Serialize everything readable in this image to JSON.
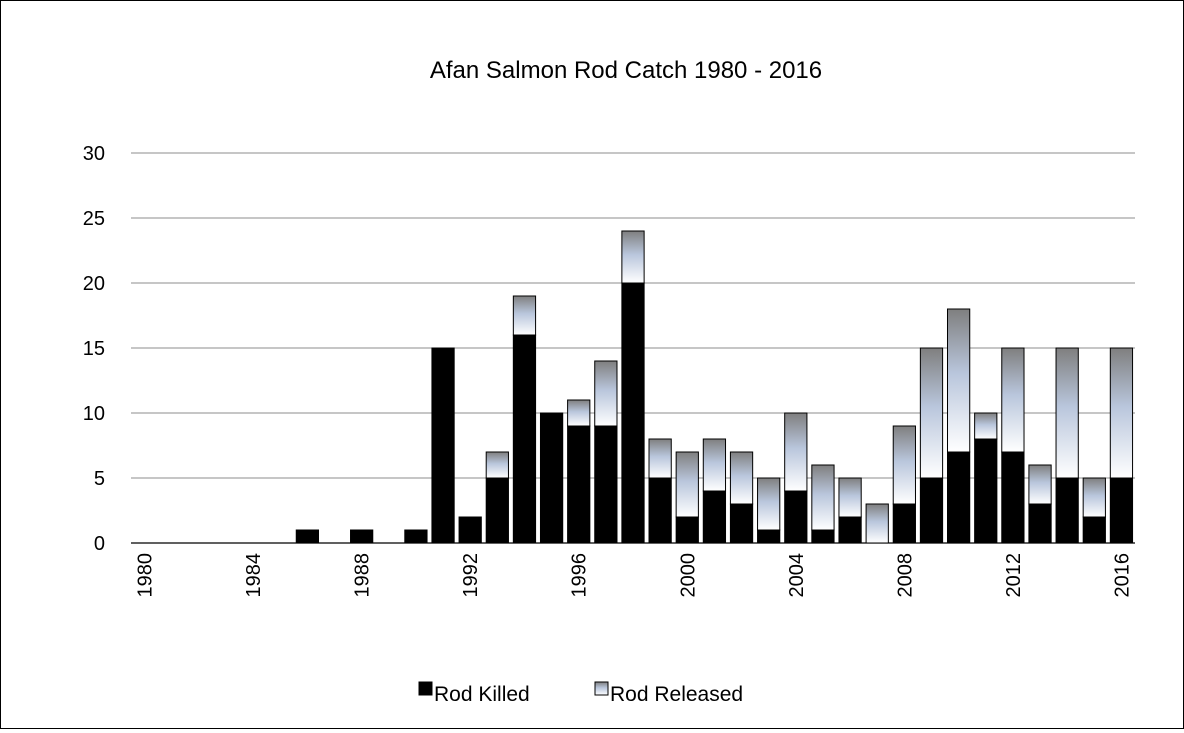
{
  "chart_data": {
    "type": "bar",
    "stacked": true,
    "title": "Afan Salmon Rod Catch 1980 - 2016",
    "xlabel": "",
    "ylabel": "",
    "ylim": [
      0,
      30
    ],
    "yticks": [
      "0",
      "5",
      "10",
      "15",
      "20",
      "25",
      "30"
    ],
    "grid": true,
    "legend_position": "bottom",
    "categories": [
      1980,
      1981,
      1982,
      1983,
      1984,
      1985,
      1986,
      1987,
      1988,
      1989,
      1990,
      1991,
      1992,
      1993,
      1994,
      1995,
      1996,
      1997,
      1998,
      1999,
      2000,
      2001,
      2002,
      2003,
      2004,
      2005,
      2006,
      2007,
      2008,
      2009,
      2010,
      2011,
      2012,
      2013,
      2014,
      2015,
      2016
    ],
    "xtick_labels": [
      "1980",
      "1984",
      "1988",
      "1992",
      "1996",
      "2000",
      "2004",
      "2008",
      "2012",
      "2016"
    ],
    "series": [
      {
        "name": "Rod Killed",
        "color": "#000000",
        "values": [
          0,
          0,
          0,
          0,
          0,
          0,
          1,
          0,
          1,
          0,
          1,
          15,
          2,
          5,
          16,
          10,
          9,
          9,
          20,
          5,
          2,
          4,
          3,
          1,
          4,
          1,
          2,
          0,
          3,
          5,
          7,
          8,
          7,
          3,
          5,
          2,
          5
        ]
      },
      {
        "name": "Rod Released",
        "color": "#9aa6b8",
        "values": [
          0,
          0,
          0,
          0,
          0,
          0,
          0,
          0,
          0,
          0,
          0,
          0,
          0,
          2,
          3,
          0,
          2,
          5,
          4,
          3,
          5,
          4,
          4,
          4,
          6,
          5,
          3,
          3,
          6,
          10,
          11,
          2,
          8,
          3,
          10,
          3,
          10
        ]
      }
    ]
  }
}
